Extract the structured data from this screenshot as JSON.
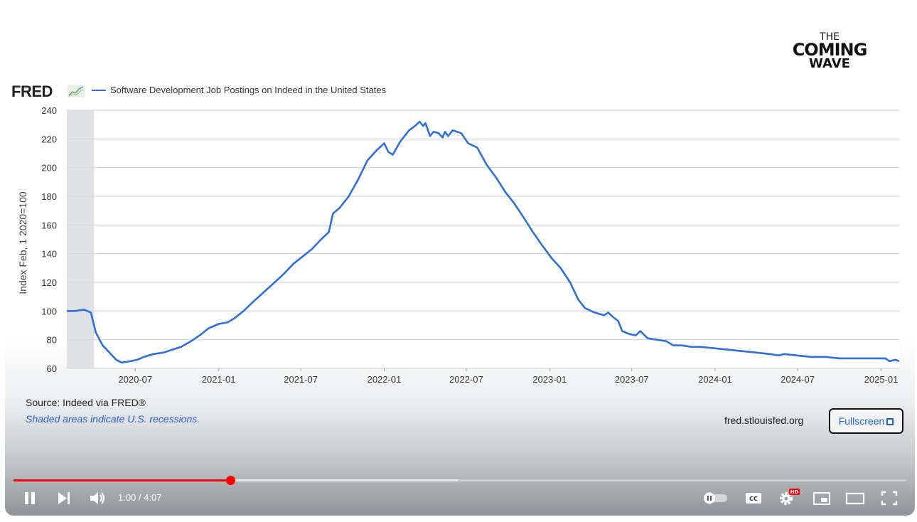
{
  "video": {
    "logo": {
      "line1": "THE",
      "line2": "COMING",
      "line3": "WAVE"
    },
    "fred_brand": "FRED",
    "legend_label": "Software Development Job Postings on Indeed in the United States",
    "source": "Source: Indeed via FRED®",
    "note": "Shaded areas indicate U.S. recessions.",
    "site": "fred.stlouisfed.org",
    "fullscreen_label": "Fullscreen"
  },
  "chart_data": {
    "type": "line",
    "ylabel": "Index Feb, 1 2020=100",
    "ylim": [
      60,
      240
    ],
    "yticks": [
      60,
      80,
      100,
      120,
      140,
      160,
      180,
      200,
      220,
      240
    ],
    "xlim": [
      "2020-02-01",
      "2025-02-10"
    ],
    "xticks": [
      "2020-07",
      "2021-01",
      "2021-07",
      "2022-01",
      "2022-07",
      "2023-01",
      "2023-07",
      "2024-01",
      "2024-07",
      "2025-01"
    ],
    "recession": [
      "2020-02-01",
      "2020-04-01"
    ],
    "grid": true,
    "legend": "top-left",
    "series_color": "#2f6fd6",
    "series": [
      {
        "name": "Software Development Job Postings on Indeed in the United States",
        "points": [
          [
            "2020-02-01",
            100
          ],
          [
            "2020-02-20",
            100
          ],
          [
            "2020-03-10",
            101
          ],
          [
            "2020-03-25",
            99
          ],
          [
            "2020-04-05",
            85
          ],
          [
            "2020-04-20",
            76
          ],
          [
            "2020-05-05",
            71
          ],
          [
            "2020-05-20",
            66
          ],
          [
            "2020-06-01",
            64
          ],
          [
            "2020-06-20",
            65
          ],
          [
            "2020-07-05",
            66
          ],
          [
            "2020-07-20",
            68
          ],
          [
            "2020-08-10",
            70
          ],
          [
            "2020-09-01",
            71
          ],
          [
            "2020-09-20",
            73
          ],
          [
            "2020-10-10",
            75
          ],
          [
            "2020-11-01",
            79
          ],
          [
            "2020-11-20",
            83
          ],
          [
            "2020-12-10",
            88
          ],
          [
            "2021-01-01",
            91
          ],
          [
            "2021-01-20",
            92
          ],
          [
            "2021-02-05",
            95
          ],
          [
            "2021-02-25",
            100
          ],
          [
            "2021-03-20",
            107
          ],
          [
            "2021-04-10",
            113
          ],
          [
            "2021-05-01",
            119
          ],
          [
            "2021-05-25",
            126
          ],
          [
            "2021-06-15",
            133
          ],
          [
            "2021-07-05",
            138
          ],
          [
            "2021-07-25",
            143
          ],
          [
            "2021-08-15",
            150
          ],
          [
            "2021-09-01",
            155
          ],
          [
            "2021-09-10",
            168
          ],
          [
            "2021-09-25",
            172
          ],
          [
            "2021-10-15",
            180
          ],
          [
            "2021-11-05",
            192
          ],
          [
            "2021-11-25",
            205
          ],
          [
            "2021-12-15",
            212
          ],
          [
            "2022-01-01",
            217
          ],
          [
            "2022-01-10",
            211
          ],
          [
            "2022-01-20",
            209
          ],
          [
            "2022-02-05",
            218
          ],
          [
            "2022-02-25",
            226
          ],
          [
            "2022-03-10",
            229
          ],
          [
            "2022-03-20",
            232
          ],
          [
            "2022-03-28",
            229
          ],
          [
            "2022-04-02",
            231
          ],
          [
            "2022-04-12",
            222
          ],
          [
            "2022-04-20",
            225
          ],
          [
            "2022-05-01",
            224
          ],
          [
            "2022-05-10",
            221
          ],
          [
            "2022-05-15",
            225
          ],
          [
            "2022-05-22",
            222
          ],
          [
            "2022-06-01",
            226
          ],
          [
            "2022-06-20",
            224
          ],
          [
            "2022-07-05",
            217
          ],
          [
            "2022-07-25",
            214
          ],
          [
            "2022-08-15",
            202
          ],
          [
            "2022-09-05",
            193
          ],
          [
            "2022-09-25",
            183
          ],
          [
            "2022-10-15",
            175
          ],
          [
            "2022-11-05",
            165
          ],
          [
            "2022-11-25",
            155
          ],
          [
            "2022-12-15",
            146
          ],
          [
            "2023-01-05",
            137
          ],
          [
            "2023-01-25",
            130
          ],
          [
            "2023-02-15",
            120
          ],
          [
            "2023-03-05",
            108
          ],
          [
            "2023-03-20",
            102
          ],
          [
            "2023-04-10",
            99
          ],
          [
            "2023-05-01",
            97
          ],
          [
            "2023-05-10",
            99
          ],
          [
            "2023-05-20",
            96
          ],
          [
            "2023-06-01",
            93
          ],
          [
            "2023-06-10",
            86
          ],
          [
            "2023-06-25",
            84
          ],
          [
            "2023-07-10",
            83
          ],
          [
            "2023-07-20",
            86
          ],
          [
            "2023-08-05",
            81
          ],
          [
            "2023-08-25",
            80
          ],
          [
            "2023-09-15",
            79
          ],
          [
            "2023-10-01",
            76
          ],
          [
            "2023-10-20",
            76
          ],
          [
            "2023-11-10",
            75
          ],
          [
            "2023-12-01",
            75
          ],
          [
            "2024-01-01",
            74
          ],
          [
            "2024-02-01",
            73
          ],
          [
            "2024-03-01",
            72
          ],
          [
            "2024-04-01",
            71
          ],
          [
            "2024-05-01",
            70
          ],
          [
            "2024-05-20",
            69
          ],
          [
            "2024-06-01",
            70
          ],
          [
            "2024-07-01",
            69
          ],
          [
            "2024-08-01",
            68
          ],
          [
            "2024-09-01",
            68
          ],
          [
            "2024-10-01",
            67
          ],
          [
            "2024-11-01",
            67
          ],
          [
            "2024-12-01",
            67
          ],
          [
            "2025-01-10",
            67
          ],
          [
            "2025-01-20",
            65
          ],
          [
            "2025-02-01",
            66
          ],
          [
            "2025-02-10",
            65
          ]
        ]
      }
    ]
  },
  "player": {
    "time_display": "1:00 / 4:07",
    "played_fraction": 0.243,
    "buffered_fraction": 0.498,
    "progress_color": "#ff0000",
    "hd_badge": "HD",
    "cc_label": "CC"
  }
}
